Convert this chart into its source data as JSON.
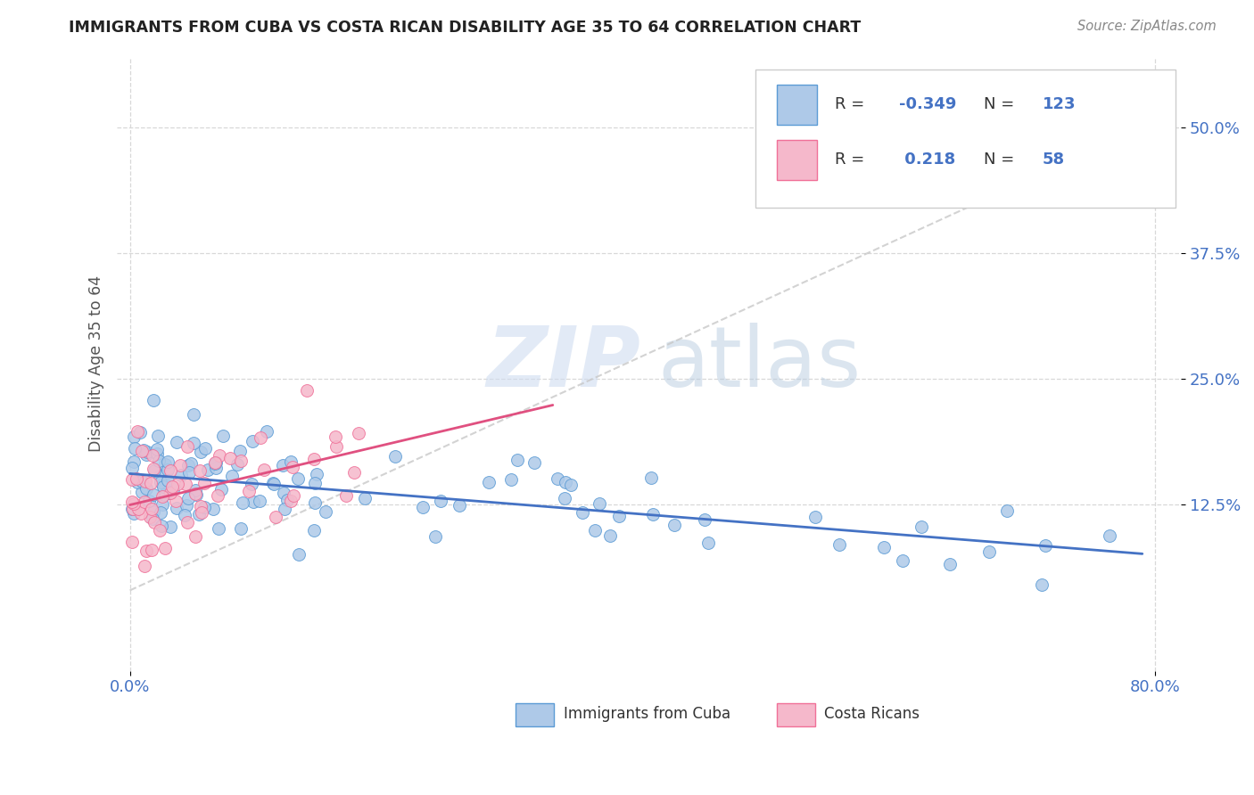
{
  "title": "IMMIGRANTS FROM CUBA VS COSTA RICAN DISABILITY AGE 35 TO 64 CORRELATION CHART",
  "source": "Source: ZipAtlas.com",
  "ylabel": "Disability Age 35 to 64",
  "xlim": [
    -0.01,
    0.82
  ],
  "ylim": [
    -0.04,
    0.57
  ],
  "ytick_labels": [
    "12.5%",
    "25.0%",
    "37.5%",
    "50.0%"
  ],
  "ytick_positions": [
    0.125,
    0.25,
    0.375,
    0.5
  ],
  "xtick_labels": [
    "0.0%",
    "80.0%"
  ],
  "xtick_positions": [
    0.0,
    0.8
  ],
  "legend_r_cuba": "-0.349",
  "legend_n_cuba": "123",
  "legend_r_costa": "0.218",
  "legend_n_costa": "58",
  "cuba_fill": "#aec9e8",
  "cuba_edge": "#5b9bd5",
  "costa_fill": "#f5b8cb",
  "costa_edge": "#f07098",
  "cuba_line": "#4472c4",
  "costa_line": "#e05080",
  "gray_dash": "#c8c8c8",
  "legend_text_color": "#4472c4",
  "axis_tick_color": "#4472c4",
  "bg": "#ffffff",
  "grid_color": "#d8d8d8",
  "title_color": "#222222",
  "source_color": "#888888",
  "ylabel_color": "#555555",
  "watermark_zip_color": "#d0ddf0",
  "watermark_atlas_color": "#b8cce0"
}
